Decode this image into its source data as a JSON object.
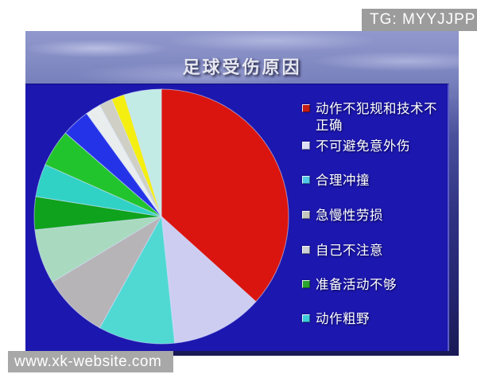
{
  "overlays": {
    "top_watermark": "TG: MYYJJPP",
    "bottom_watermark": "www.xk-website.com"
  },
  "slide": {
    "title": "足球受伤原因"
  },
  "chart_data": {
    "type": "pie",
    "title": "足球受伤原因",
    "legend_position": "right",
    "background_color": "#1c17ae",
    "slices": [
      {
        "label": "动作不犯规和技术不正确",
        "percent": 36.7,
        "angle_deg": 132,
        "color": "#da1510"
      },
      {
        "label": "不可避免意外伤",
        "percent": 11.7,
        "angle_deg": 42,
        "color": "#cdcdf2"
      },
      {
        "label": "合理冲撞",
        "percent": 9.7,
        "angle_deg": 35,
        "color": "#4fd9d2"
      },
      {
        "label": "急慢性劳损",
        "percent": 8.3,
        "angle_deg": 30,
        "color": "#b7b4b8"
      },
      {
        "label": "自己不注意",
        "percent": 6.9,
        "angle_deg": 25,
        "color": "#a9dabf"
      },
      {
        "label": "准备活动不够",
        "percent": 4.2,
        "angle_deg": 15,
        "color": "#0fa21c"
      },
      {
        "label": "动作粗野",
        "percent": 4.2,
        "angle_deg": 15,
        "color": "#30d2c6"
      },
      {
        "label": "",
        "percent": 4.7,
        "angle_deg": 17,
        "color": "#22c42e"
      },
      {
        "label": "",
        "percent": 3.6,
        "angle_deg": 13,
        "color": "#2533e8"
      },
      {
        "label": "",
        "percent": 1.9,
        "angle_deg": 7,
        "color": "#e9eded"
      },
      {
        "label": "",
        "percent": 1.7,
        "angle_deg": 6,
        "color": "#cfcfc5"
      },
      {
        "label": "",
        "percent": 1.7,
        "angle_deg": 6,
        "color": "#f4ef10"
      },
      {
        "label": "",
        "percent": 4.7,
        "angle_deg": 17,
        "color": "#c3ebe5"
      }
    ],
    "legend": [
      {
        "label": "动作不犯规和技术不正确",
        "color": "#c41c14"
      },
      {
        "label": "不可避免意外伤",
        "color": "#dcdcf4"
      },
      {
        "label": "合理冲撞",
        "color": "#52c8e6"
      },
      {
        "label": "急慢性劳损",
        "color": "#c2c6bd"
      },
      {
        "label": "自己不注意",
        "color": "#ccd2d6"
      },
      {
        "label": "准备活动不够",
        "color": "#2aa42e"
      },
      {
        "label": "动作粗野",
        "color": "#3eccda"
      }
    ]
  }
}
